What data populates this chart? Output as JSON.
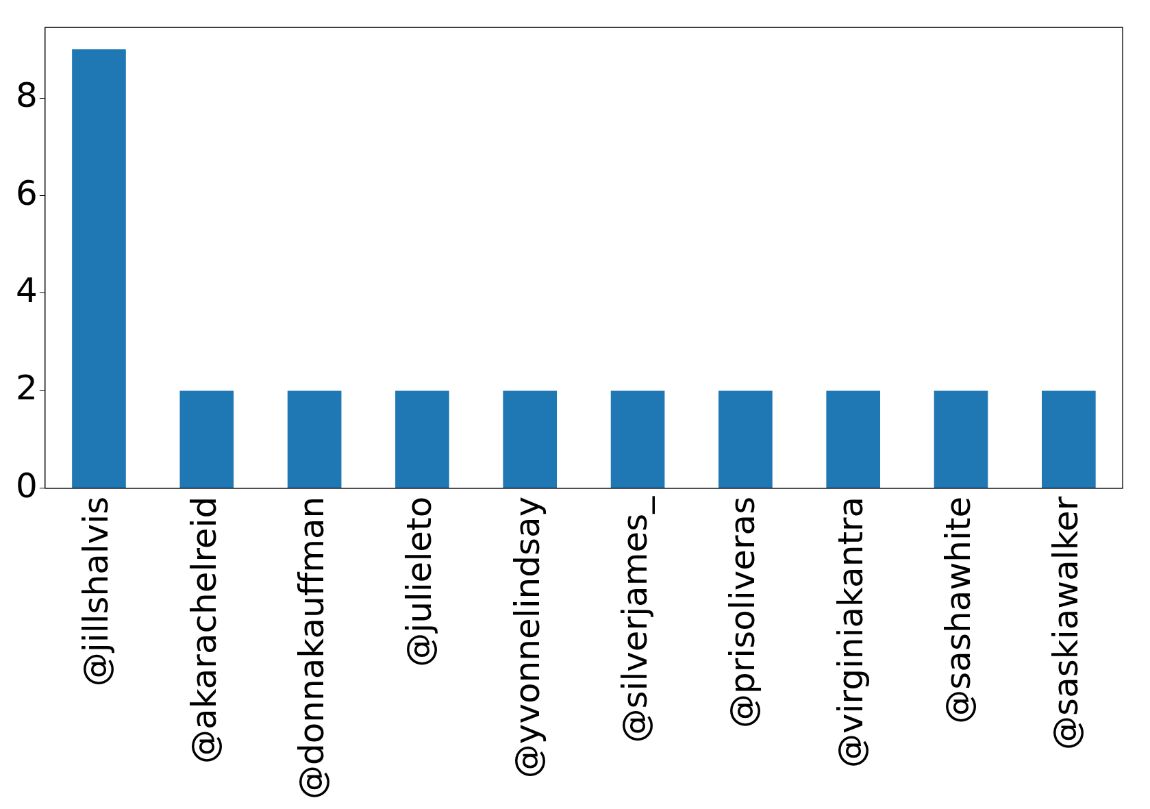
{
  "chart_data": {
    "type": "bar",
    "categories": [
      "@jillshalvis",
      "@akarachelreid",
      "@donnakauffman",
      "@julieleto",
      "@yvonnelindsay",
      "@silverjames_",
      "@prisoliveras",
      "@virginiakantra",
      "@sashawhite",
      "@saskiawalker"
    ],
    "values": [
      9,
      2,
      2,
      2,
      2,
      2,
      2,
      2,
      2,
      2
    ],
    "color": "#1f77b4",
    "ylim": [
      0,
      9.45
    ],
    "yticks": [
      0,
      2,
      4,
      6,
      8
    ],
    "grid": false,
    "legend": false
  }
}
